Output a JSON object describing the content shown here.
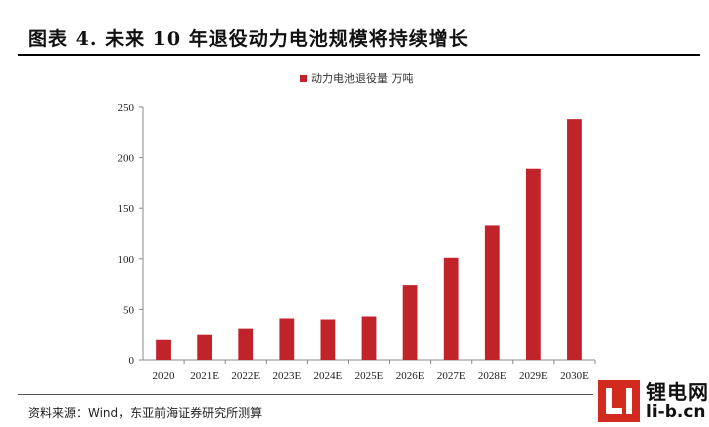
{
  "header": {
    "title": "图表 4.   未来 10 年退役动力电池规模将持续增长"
  },
  "chart_data": {
    "type": "bar",
    "categories": [
      "2020",
      "2021E",
      "2022E",
      "2023E",
      "2024E",
      "2025E",
      "2026E",
      "2027E",
      "2028E",
      "2029E",
      "2030E"
    ],
    "series": [
      {
        "name": "动力电池退役量 万吨",
        "values": [
          20,
          25,
          31,
          41,
          40,
          43,
          74,
          101,
          133,
          189,
          238
        ],
        "color": "#c0232a"
      }
    ],
    "yticks": [
      0,
      50,
      100,
      150,
      200,
      250
    ],
    "ylim": [
      0,
      250
    ],
    "grid": false,
    "legend_position": "top"
  },
  "footer": {
    "source": "资料来源：Wind，东亚前海证券研究所测算"
  },
  "watermark": {
    "name_cn": "锂电网",
    "domain": "li-b.cn"
  }
}
